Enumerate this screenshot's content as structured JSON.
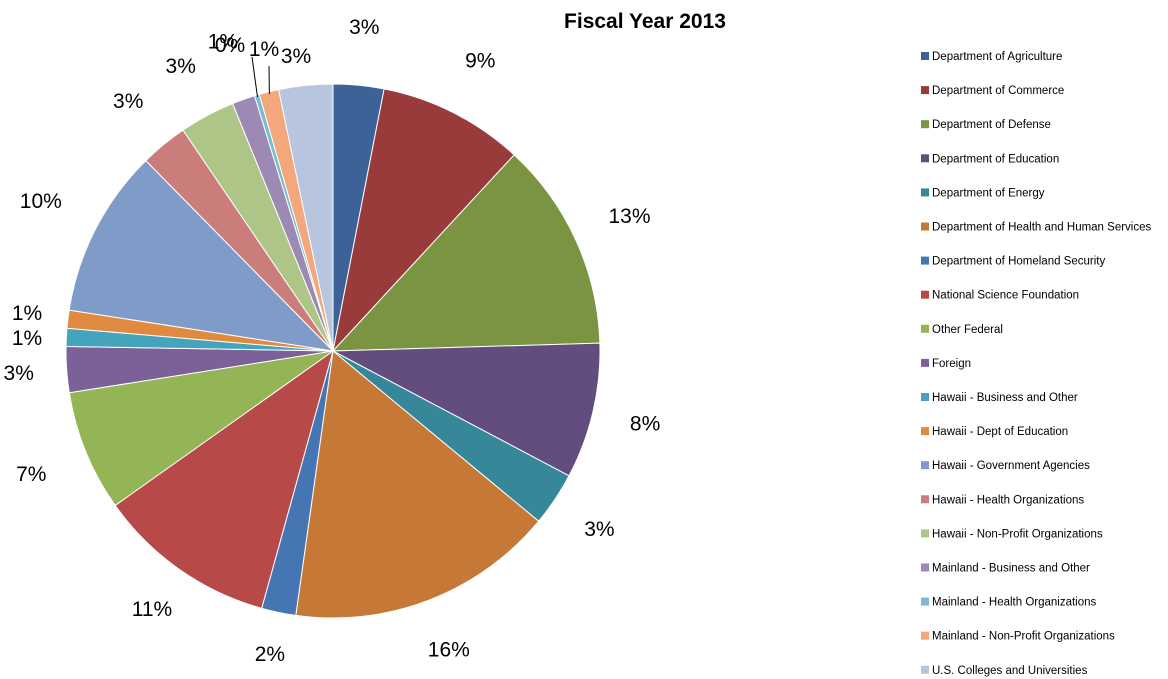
{
  "chart_data": {
    "type": "pie",
    "title": "Fiscal Year 2013",
    "legend_position": "right",
    "categories": [
      "Department of Agriculture",
      "Department of Commerce",
      "Department of Defense",
      "Department of Education",
      "Department of Energy",
      "Department of Health and Human Services",
      "Department of Homeland Security",
      "National Science Foundation",
      "Other Federal",
      "Foreign",
      "Hawaii - Business and Other",
      "Hawaii - Dept of Education",
      "Hawaii - Government Agencies",
      "Hawaii - Health Organizations",
      "Hawaii - Non-Profit Organizations",
      "Mainland - Business and Other",
      "Mainland - Health Organizations",
      "Mainland - Non-Profit Organizations",
      "U.S. Colleges and Universities"
    ],
    "values": [
      3.1,
      8.9,
      12.8,
      8.3,
      3.3,
      16.4,
      2.1,
      11.0,
      7.4,
      2.8,
      1.1,
      1.1,
      10.3,
      2.9,
      3.4,
      1.4,
      0.3,
      1.2,
      3.3
    ],
    "labels": [
      "3%",
      "9%",
      "13%",
      "8%",
      "3%",
      "16%",
      "2%",
      "11%",
      "7%",
      "3%",
      "1%",
      "1%",
      "10%",
      "3%",
      "3%",
      "1%",
      "0%",
      "1%",
      "3%"
    ],
    "colors": [
      "#3C6298",
      "#983B3A",
      "#7A9442",
      "#634C7E",
      "#36879A",
      "#C67836",
      "#4675B4",
      "#B74A48",
      "#93B555",
      "#7C6198",
      "#44A4BC",
      "#E1893E",
      "#7F9BC8",
      "#CB7D7C",
      "#ADC687",
      "#9C8AB4",
      "#78BDD3",
      "#F4A77A",
      "#B7C5DF"
    ]
  }
}
